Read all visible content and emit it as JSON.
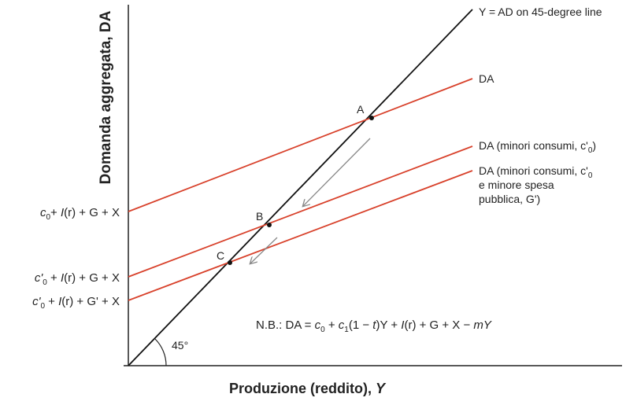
{
  "axes": {
    "y_label": "Domanda aggregata, DA",
    "x_label": [
      "Produzione (reddito), ",
      "Y"
    ]
  },
  "lines": {
    "diagonal": "Y = AD on 45-degree line",
    "da": "DA",
    "da_lower_consumption": [
      "DA (minori consumi, c'",
      "0",
      ")"
    ],
    "da_lower_consumption_spending": [
      "DA (minori consumi, c'",
      "0",
      "e minore spesa",
      "pubblica, G')"
    ]
  },
  "intercepts": [
    [
      "c",
      "0",
      "+ ",
      "I",
      "(r) + G + X"
    ],
    [
      "c'",
      "0",
      " + ",
      "I",
      "(r) + G + X"
    ],
    [
      "c'",
      "0",
      " + ",
      "I",
      "(r) + G' + X"
    ]
  ],
  "points": [
    "A",
    "B",
    "C"
  ],
  "angle": "45°",
  "note": [
    "N.B.: DA = ",
    "c",
    "0",
    " + ",
    "c",
    "1",
    "(1 − ",
    "t",
    ")Y + ",
    "I",
    "(r) + G + X − ",
    "mY"
  ]
}
